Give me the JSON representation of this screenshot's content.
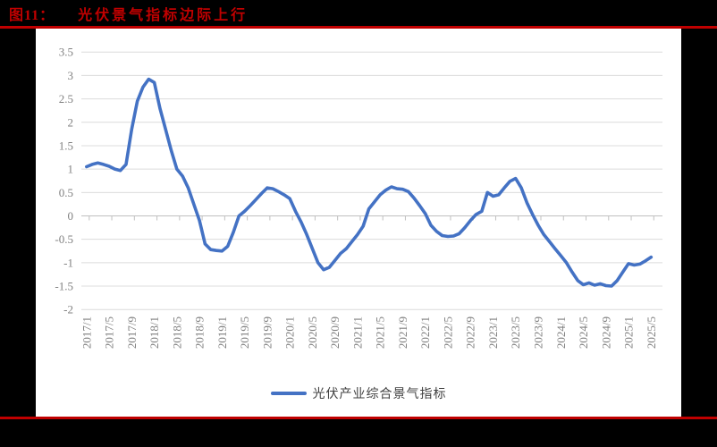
{
  "page": {
    "background_color": "#000000",
    "accent_red": "#c00000",
    "panel_color": "#ffffff"
  },
  "header": {
    "figure_label": "图11：",
    "title": "光伏景气指标边际上行"
  },
  "legend": {
    "label": "光伏产业综合景气指标",
    "line_color": "#4472c4"
  },
  "chart_data": {
    "type": "line",
    "title": "图11：光伏景气指标边际上行",
    "x_start": "2017/1",
    "x_frequency": "monthly",
    "x_tick_labels": [
      "2017/1",
      "2017/5",
      "2017/9",
      "2018/1",
      "2018/5",
      "2018/9",
      "2019/1",
      "2019/5",
      "2019/9",
      "2020/1",
      "2020/5",
      "2020/9",
      "2021/1",
      "2021/5",
      "2021/9",
      "2022/1",
      "2022/5",
      "2022/9",
      "2023/1",
      "2023/5",
      "2023/9",
      "2024/1",
      "2024/5",
      "2024/9",
      "2025/1",
      "2025/5"
    ],
    "x_ticks_every_n_months": 4,
    "y_tick_labels": [
      "3.5",
      "3",
      "2.5",
      "2",
      "1.5",
      "1",
      "0.5",
      "0",
      "-0.5",
      "-1",
      "-1.5",
      "-2"
    ],
    "ylim": [
      -2,
      3.5
    ],
    "grid": true,
    "legend_position": "bottom",
    "series": [
      {
        "name": "光伏产业综合景气指标",
        "color": "#4472c4",
        "values": [
          1.05,
          1.1,
          1.13,
          1.1,
          1.06,
          1.0,
          0.97,
          1.1,
          1.85,
          2.45,
          2.75,
          2.92,
          2.85,
          2.3,
          1.85,
          1.4,
          1.0,
          0.85,
          0.6,
          0.25,
          -0.1,
          -0.6,
          -0.72,
          -0.74,
          -0.75,
          -0.65,
          -0.35,
          0.0,
          0.1,
          0.22,
          0.35,
          0.48,
          0.6,
          0.58,
          0.52,
          0.45,
          0.37,
          0.1,
          -0.13,
          -0.4,
          -0.7,
          -1.0,
          -1.15,
          -1.1,
          -0.95,
          -0.8,
          -0.7,
          -0.55,
          -0.4,
          -0.22,
          0.15,
          0.3,
          0.45,
          0.55,
          0.62,
          0.58,
          0.57,
          0.52,
          0.38,
          0.22,
          0.05,
          -0.2,
          -0.33,
          -0.42,
          -0.44,
          -0.43,
          -0.38,
          -0.25,
          -0.1,
          0.03,
          0.1,
          0.5,
          0.42,
          0.45,
          0.6,
          0.74,
          0.8,
          0.6,
          0.28,
          0.03,
          -0.2,
          -0.4,
          -0.55,
          -0.7,
          -0.85,
          -1.0,
          -1.2,
          -1.38,
          -1.47,
          -1.43,
          -1.48,
          -1.45,
          -1.49,
          -1.5,
          -1.38,
          -1.2,
          -1.02,
          -1.05,
          -1.03,
          -0.96,
          -0.88
        ]
      }
    ],
    "style": {
      "gridline_color": "#dcdcdc",
      "axis_color": "#c0c0c0",
      "tick_label_color": "#808080"
    }
  }
}
